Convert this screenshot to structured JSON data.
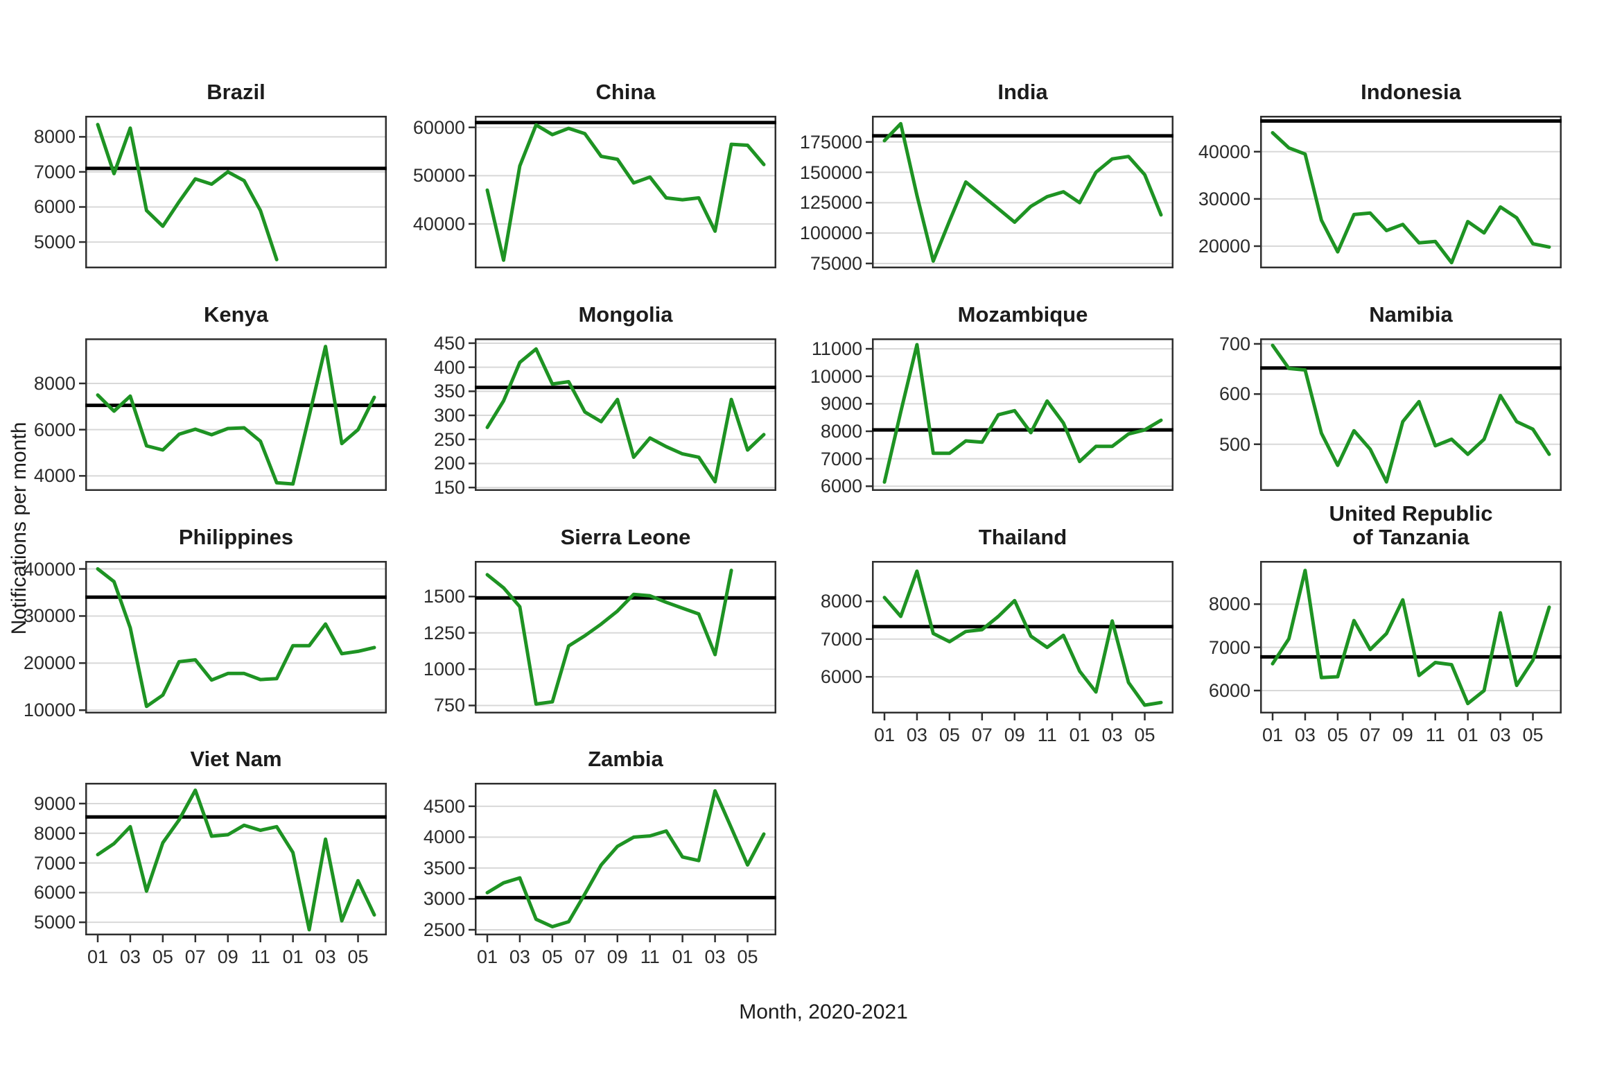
{
  "chart_data": {
    "type": "line",
    "xlabel": "Month, 2020-2021",
    "ylabel": "Notifications per month",
    "x_tick_labels": [
      "01",
      "03",
      "05",
      "07",
      "09",
      "11",
      "01",
      "03",
      "05"
    ],
    "x_tick_months": [
      1,
      3,
      5,
      7,
      9,
      11,
      13,
      15,
      17
    ],
    "x_range_months": [
      1,
      18
    ],
    "legend": "none",
    "grid": "major-horizontal",
    "style": {
      "line_color": "#1e9323",
      "ref_line_color": "#000000",
      "grid_color": "#d8d8d8",
      "border_color": "#2f2f2f",
      "text_color": "#1c1c1c",
      "background": "#ffffff"
    },
    "facets": [
      {
        "title": "Brazil",
        "slug": "brazil",
        "show_x": false,
        "y_ticks": [
          5000,
          6000,
          7000,
          8000
        ],
        "y_domain": [
          4250,
          8600
        ],
        "ref_line": 7100,
        "values": [
          8350,
          6950,
          8250,
          5900,
          5450,
          6150,
          6800,
          6650,
          7000,
          6750,
          5900,
          4500
        ]
      },
      {
        "title": "China",
        "slug": "china",
        "show_x": false,
        "y_ticks": [
          40000,
          50000,
          60000
        ],
        "y_domain": [
          30800,
          62400
        ],
        "ref_line": 61000,
        "values": [
          47000,
          32500,
          52000,
          60500,
          58500,
          59800,
          58700,
          54000,
          53400,
          48500,
          49700,
          45400,
          45000,
          45400,
          38500,
          56500,
          56300,
          52300
        ]
      },
      {
        "title": "India",
        "slug": "india",
        "show_x": false,
        "y_ticks": [
          75000,
          100000,
          125000,
          150000,
          175000
        ],
        "y_domain": [
          71000,
          196500
        ],
        "ref_line": 180000,
        "values": [
          176000,
          190000,
          131000,
          77000,
          110000,
          142000,
          131000,
          120000,
          109000,
          122000,
          130000,
          134000,
          125000,
          150000,
          161000,
          163000,
          148000,
          115000
        ]
      },
      {
        "title": "Indonesia",
        "slug": "indonesia",
        "show_x": false,
        "y_ticks": [
          20000,
          30000,
          40000
        ],
        "y_domain": [
          15300,
          47600
        ],
        "ref_line": 46500,
        "values": [
          44000,
          40800,
          39500,
          25500,
          18800,
          26700,
          27000,
          23300,
          24600,
          20700,
          21000,
          16500,
          25200,
          22800,
          28300,
          26000,
          20500,
          19800
        ]
      },
      {
        "title": "Kenya",
        "slug": "kenya",
        "show_x": false,
        "y_ticks": [
          4000,
          6000,
          8000
        ],
        "y_domain": [
          3350,
          9950
        ],
        "ref_line": 7050,
        "values": [
          7500,
          6800,
          7450,
          5300,
          5120,
          5800,
          6020,
          5780,
          6050,
          6080,
          5500,
          3700,
          3650,
          6600,
          9600,
          5400,
          6000,
          7400
        ]
      },
      {
        "title": "Mongolia",
        "slug": "mongolia",
        "show_x": false,
        "y_ticks": [
          150,
          200,
          250,
          300,
          350,
          400,
          450
        ],
        "y_domain": [
          143,
          460
        ],
        "ref_line": 358,
        "values": [
          275,
          330,
          410,
          438,
          365,
          370,
          307,
          287,
          333,
          213,
          253,
          235,
          220,
          213,
          162,
          333,
          228,
          260
        ]
      },
      {
        "title": "Mozambique",
        "slug": "mozambique",
        "show_x": false,
        "y_ticks": [
          6000,
          7000,
          8000,
          9000,
          10000,
          11000
        ],
        "y_domain": [
          5830,
          11380
        ],
        "ref_line": 8050,
        "values": [
          6150,
          8700,
          11150,
          7200,
          7200,
          7650,
          7600,
          8600,
          8750,
          7950,
          9100,
          8300,
          6900,
          7450,
          7450,
          7900,
          8050,
          8400
        ]
      },
      {
        "title": "Namibia",
        "slug": "namibia",
        "show_x": false,
        "y_ticks": [
          500,
          600,
          700
        ],
        "y_domain": [
          407,
          711
        ],
        "ref_line": 652,
        "values": [
          697,
          651,
          648,
          522,
          458,
          527,
          490,
          425,
          545,
          585,
          497,
          510,
          480,
          510,
          597,
          545,
          530,
          480
        ]
      },
      {
        "title": "Philippines",
        "slug": "philippines",
        "show_x": false,
        "y_ticks": [
          10000,
          20000,
          30000,
          40000
        ],
        "y_domain": [
          9300,
          41700
        ],
        "ref_line": 34000,
        "values": [
          40000,
          37300,
          27500,
          10800,
          13200,
          20300,
          20700,
          16400,
          17800,
          17800,
          16500,
          16700,
          23700,
          23700,
          28300,
          22000,
          22500,
          23300
        ]
      },
      {
        "title": "Sierra Leone",
        "slug": "sierra-leone",
        "show_x": false,
        "y_ticks": [
          750,
          1000,
          1250,
          1500
        ],
        "y_domain": [
          695,
          1745
        ],
        "ref_line": 1490,
        "values": [
          1650,
          1560,
          1430,
          760,
          775,
          1160,
          1230,
          1310,
          1400,
          1515,
          1505,
          1460,
          1420,
          1380,
          1100,
          1680
        ]
      },
      {
        "title": "Thailand",
        "slug": "thailand",
        "show_x": true,
        "y_ticks": [
          6000,
          7000,
          8000
        ],
        "y_domain": [
          5030,
          9070
        ],
        "ref_line": 7330,
        "values": [
          8100,
          7600,
          8800,
          7150,
          6930,
          7200,
          7250,
          7600,
          8020,
          7080,
          6780,
          7100,
          6150,
          5600,
          7480,
          5850,
          5250,
          5320
        ]
      },
      {
        "title": "United Republic\nof Tanzania",
        "slug": "united-republic-of-tanzania",
        "show_x": true,
        "y_ticks": [
          6000,
          7000,
          8000
        ],
        "y_domain": [
          5470,
          9000
        ],
        "ref_line": 6780,
        "values": [
          6620,
          7200,
          8780,
          6300,
          6320,
          7620,
          6950,
          7320,
          8100,
          6350,
          6650,
          6600,
          5700,
          6000,
          7800,
          6120,
          6700,
          7930
        ]
      },
      {
        "title": "Viet Nam",
        "slug": "viet-nam",
        "show_x": true,
        "y_ticks": [
          5000,
          6000,
          7000,
          8000,
          9000
        ],
        "y_domain": [
          4560,
          9700
        ],
        "ref_line": 8550,
        "values": [
          7280,
          7650,
          8220,
          6050,
          7680,
          8450,
          9450,
          7900,
          7950,
          8270,
          8100,
          8220,
          7350,
          4750,
          7800,
          5050,
          6400,
          5250
        ]
      },
      {
        "title": "Zambia",
        "slug": "zambia",
        "show_x": true,
        "y_ticks": [
          2500,
          3000,
          3500,
          4000,
          4500
        ],
        "y_domain": [
          2410,
          4880
        ],
        "ref_line": 3020,
        "values": [
          3100,
          3260,
          3340,
          2670,
          2550,
          2630,
          3080,
          3550,
          3850,
          4000,
          4020,
          4100,
          3680,
          3620,
          4750,
          4150,
          3550,
          4050
        ]
      }
    ]
  }
}
